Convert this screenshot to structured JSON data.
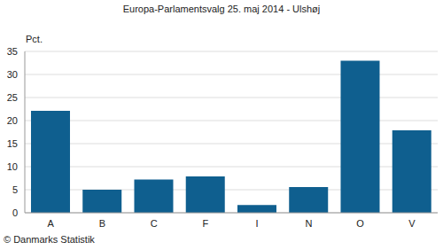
{
  "chart_data": {
    "type": "bar",
    "title": "Europa-Parlamentsvalg 25. maj 2014 - Ulshøj",
    "ylabel": "Pct.",
    "source": "© Danmarks Statistik",
    "categories": [
      "A",
      "B",
      "C",
      "F",
      "I",
      "N",
      "O",
      "V"
    ],
    "values": [
      22.1,
      5.0,
      7.2,
      7.9,
      1.7,
      5.6,
      33.0,
      17.9
    ],
    "color": "#0f5f8f",
    "ylim": [
      0,
      35
    ],
    "yticks": [
      0,
      5,
      10,
      15,
      20,
      25,
      30,
      35
    ],
    "grid": true
  }
}
